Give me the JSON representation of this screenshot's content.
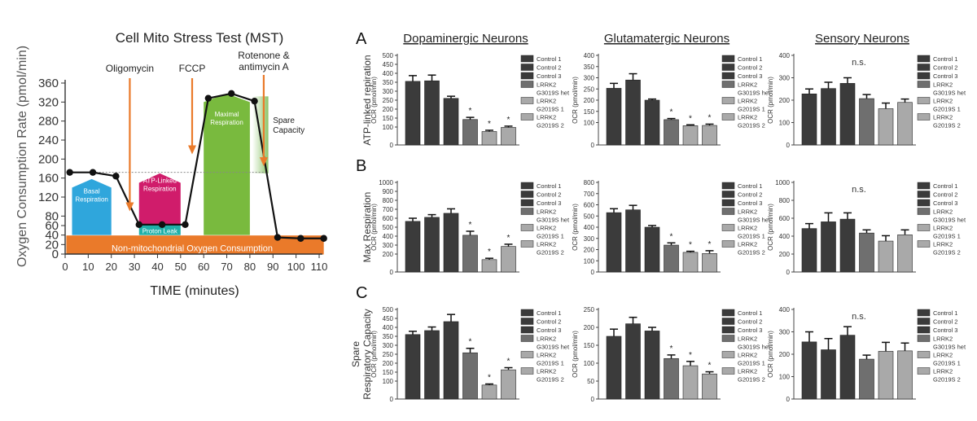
{
  "colors": {
    "dark": "#3b3b3b",
    "mid": "#6f6f6f",
    "light": "#a9a9a9",
    "orange": "#ea7a2a",
    "blue": "#2fa6dc",
    "magenta": "#d01c6b",
    "teal": "#20b0a8",
    "green": "#79ba3e",
    "spare_green": "#8cc46a"
  },
  "chart_data": [
    {
      "type": "line",
      "title": "Cell Mito Stress Test (MST)",
      "xlabel": "TIME (minutes)",
      "ylabel": "Oxygen Consumption Rate (pmol/min)",
      "xlim": [
        0,
        110
      ],
      "ylim": [
        0,
        360
      ],
      "xticks": [
        0,
        10,
        20,
        30,
        40,
        50,
        60,
        70,
        80,
        90,
        100,
        110
      ],
      "yticks": [
        0,
        20,
        40,
        60,
        80,
        120,
        160,
        200,
        240,
        280,
        320,
        360
      ],
      "series": [
        {
          "x": [
            2,
            12,
            22,
            32,
            42,
            52,
            62,
            72,
            82,
            92,
            102,
            112
          ],
          "y": [
            172,
            172,
            164,
            62,
            62,
            62,
            328,
            338,
            322,
            35,
            33,
            33
          ]
        }
      ],
      "injections": [
        {
          "label": "Oligomycin",
          "x": 28
        },
        {
          "label": "FCCP",
          "x": 55
        },
        {
          "label": "Rotenone & antimycin A",
          "x": 86
        }
      ],
      "regions": {
        "basal": "Basal Respiration",
        "atp": "ATP-Linked Respiration",
        "leak": "Proton Leak",
        "maximal": "Maximal Respiration",
        "spare": "Spare Capacity",
        "nonmito": "Non-mitochondrial Oxygen Consumption"
      },
      "reference_line_y": 172
    },
    {
      "type": "bar",
      "panel_rows": [
        {
          "letter": "A",
          "ylabel": "ATP-linked repiration"
        },
        {
          "letter": "B",
          "ylabel": "Max Respiration"
        },
        {
          "letter": "C",
          "ylabel": "Spare Respiratory Capacity"
        }
      ],
      "column_titles": [
        "Dopaminergic Neurons",
        "Glutamatergic Neurons",
        "Sensory Neurons"
      ],
      "axis_label": "OCR (pmol/min)",
      "categories": [
        "Control 1",
        "Control 2",
        "Control 3",
        "LRRK2 G3019S het",
        "LRRK2 G2019S 1",
        "LRRK2 G2019S 2"
      ],
      "legend_items": [
        {
          "lines": [
            "Control 1"
          ],
          "shade": "dark"
        },
        {
          "lines": [
            "Control 2"
          ],
          "shade": "dark"
        },
        {
          "lines": [
            "Control 3"
          ],
          "shade": "dark"
        },
        {
          "lines": [
            "LRRK2",
            "G3019S het"
          ],
          "shade": "mid"
        },
        {
          "lines": [
            "LRRK2",
            "G2019S 1"
          ],
          "shade": "light"
        },
        {
          "lines": [
            "LRRK2",
            "G2019S 2"
          ],
          "shade": "light"
        }
      ],
      "panels": [
        {
          "row": 0,
          "col": 0,
          "ymax": 500,
          "yticks": [
            0,
            100,
            150,
            200,
            250,
            300,
            350,
            400,
            450,
            500
          ],
          "values": [
            355,
            358,
            260,
            142,
            75,
            98
          ],
          "errors": [
            32,
            32,
            12,
            12,
            7,
            7
          ],
          "stars": [
            false,
            false,
            false,
            true,
            true,
            true
          ],
          "note": ""
        },
        {
          "row": 0,
          "col": 1,
          "ymax": 400,
          "yticks": [
            0,
            100,
            150,
            200,
            250,
            300,
            350,
            400
          ],
          "values": [
            253,
            290,
            200,
            113,
            86,
            87
          ],
          "errors": [
            22,
            28,
            5,
            5,
            4,
            6
          ],
          "stars": [
            false,
            false,
            false,
            true,
            true,
            true
          ],
          "note": ""
        },
        {
          "row": 0,
          "col": 2,
          "ymax": 400,
          "yticks": [
            0,
            100,
            200,
            300,
            400
          ],
          "values": [
            228,
            252,
            275,
            207,
            162,
            190
          ],
          "errors": [
            22,
            28,
            25,
            18,
            25,
            15
          ],
          "stars": [
            false,
            false,
            false,
            false,
            false,
            false
          ],
          "note": "n.s."
        },
        {
          "row": 1,
          "col": 0,
          "ymax": 1000,
          "yticks": [
            0,
            200,
            300,
            400,
            500,
            600,
            700,
            800,
            900,
            1000
          ],
          "values": [
            565,
            610,
            655,
            410,
            138,
            285
          ],
          "errors": [
            35,
            30,
            50,
            45,
            15,
            25
          ],
          "stars": [
            false,
            false,
            false,
            true,
            true,
            true
          ],
          "note": ""
        },
        {
          "row": 1,
          "col": 1,
          "ymax": 800,
          "yticks": [
            0,
            100,
            200,
            300,
            400,
            500,
            600,
            700,
            800
          ],
          "values": [
            530,
            555,
            400,
            240,
            175,
            165
          ],
          "errors": [
            35,
            40,
            15,
            20,
            10,
            25
          ],
          "stars": [
            false,
            false,
            false,
            true,
            true,
            true
          ],
          "note": ""
        },
        {
          "row": 1,
          "col": 2,
          "ymax": 1000,
          "yticks": [
            0,
            200,
            400,
            600,
            800,
            1000
          ],
          "values": [
            485,
            560,
            590,
            435,
            345,
            415
          ],
          "errors": [
            55,
            100,
            70,
            35,
            60,
            55
          ],
          "stars": [
            false,
            false,
            false,
            false,
            false,
            false
          ],
          "note": "n.s."
        },
        {
          "row": 2,
          "col": 0,
          "ymax": 500,
          "yticks": [
            0,
            100,
            150,
            200,
            250,
            300,
            350,
            400,
            450,
            500
          ],
          "values": [
            360,
            382,
            432,
            258,
            78,
            163
          ],
          "errors": [
            18,
            20,
            40,
            25,
            6,
            12
          ],
          "stars": [
            false,
            false,
            false,
            true,
            true,
            true
          ],
          "note": ""
        },
        {
          "row": 2,
          "col": 1,
          "ymax": 250,
          "yticks": [
            0,
            50,
            100,
            150,
            200,
            250
          ],
          "values": [
            175,
            210,
            190,
            113,
            93,
            70
          ],
          "errors": [
            20,
            18,
            10,
            10,
            12,
            6
          ],
          "stars": [
            false,
            false,
            false,
            true,
            true,
            true
          ],
          "note": ""
        },
        {
          "row": 2,
          "col": 2,
          "ymax": 400,
          "yticks": [
            0,
            100,
            200,
            300,
            400
          ],
          "values": [
            255,
            220,
            285,
            178,
            213,
            215
          ],
          "errors": [
            45,
            50,
            38,
            18,
            40,
            35
          ],
          "stars": [
            false,
            false,
            false,
            false,
            false,
            false
          ],
          "note": "n.s."
        }
      ]
    }
  ]
}
